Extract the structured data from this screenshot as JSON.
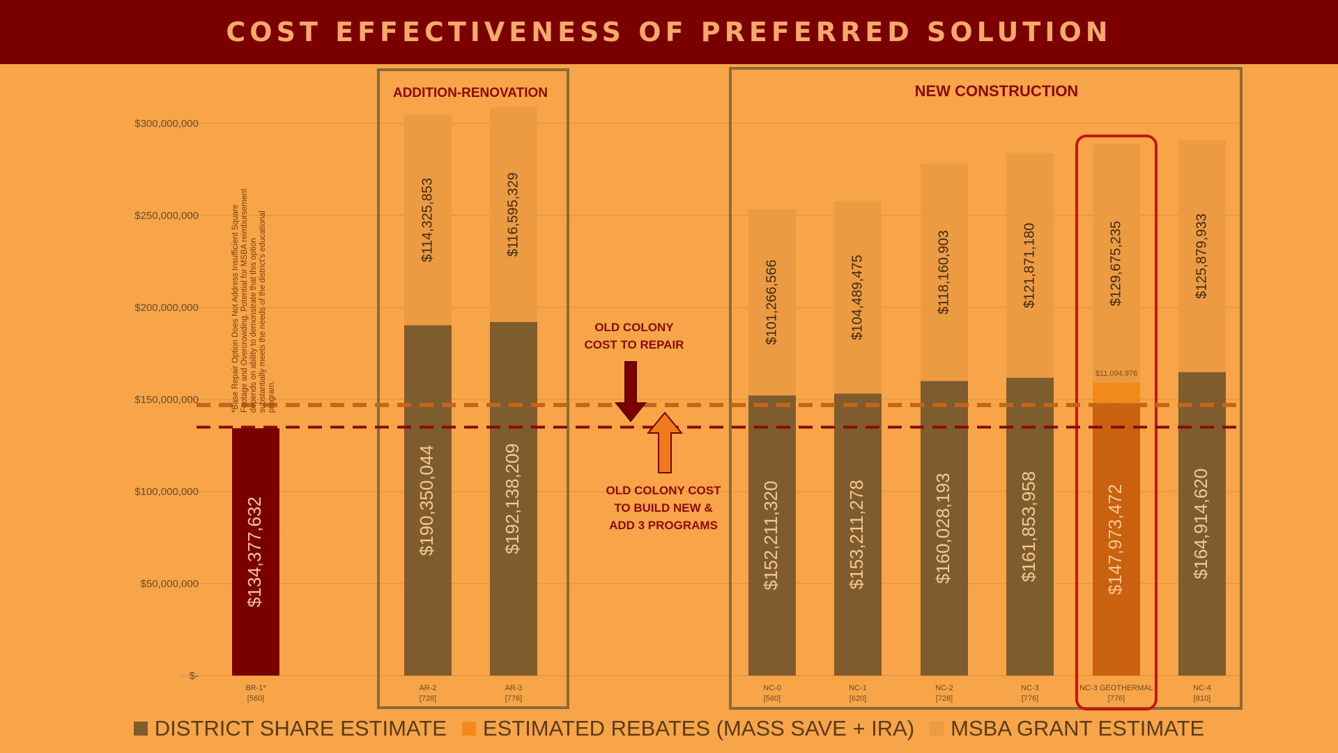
{
  "header": {
    "title": "COST EFFECTIVENESS OF PREFERRED SOLUTION"
  },
  "colors": {
    "background": "#f7a548",
    "title_bar": "#7a0000",
    "district_share": "#7e5c2e",
    "district_share_br1": "#7a0000",
    "district_share_geothermal": "#c9610e",
    "rebates": "#f28a1a",
    "msba_grant": "#ec9b42",
    "repair_line": "#c2661a",
    "new_line": "#8a0a0a"
  },
  "groups": {
    "addition_renovation": "ADDITION-RENOVATION",
    "new_construction": "NEW CONSTRUCTION"
  },
  "annotations": {
    "br1_note": "*Base Repair Option Does Not Address Insufficient Square Footage and Overcrowding. Potential for MSBA reimbursement depends on ability to demonstrate that this option substantially meets the needs of the district's educational program.",
    "repair_label": [
      "OLD COLONY",
      "COST TO REPAIR"
    ],
    "new_label": [
      "OLD COLONY COST",
      "TO BUILD NEW &",
      "ADD 3 PROGRAMS"
    ]
  },
  "legend": [
    {
      "label": "DISTRICT SHARE ESTIMATE",
      "color": "#7e5c2e"
    },
    {
      "label": "ESTIMATED REBATES (MASS SAVE + IRA)",
      "color": "#f28a1a"
    },
    {
      "label": "MSBA GRANT ESTIMATE",
      "color": "#ec9b42"
    }
  ],
  "chart_data": {
    "type": "bar",
    "stacked": true,
    "title": "COST EFFECTIVENESS OF PREFERRED SOLUTION",
    "categories": [
      "BR-1*",
      "AR-2",
      "AR-3",
      "NC-0",
      "NC-1",
      "NC-2",
      "NC-3",
      "NC-3 GEOTHERMAL",
      "NC-4"
    ],
    "category_sublabels": [
      "[560]",
      "[728]",
      "[776]",
      "[560]",
      "[620]",
      "[728]",
      "[776]",
      "[776]",
      "[810]"
    ],
    "series": [
      {
        "name": "DISTRICT SHARE ESTIMATE",
        "values": [
          134377632,
          190350044,
          192138209,
          152211320,
          153211278,
          160028193,
          161853958,
          147973472,
          164914620
        ],
        "labels": [
          "$134,377,632",
          "$190,350,044",
          "$192,138,209",
          "$152,211,320",
          "$153,211,278",
          "$160,028,193",
          "$161,853,958",
          "$147,973,472",
          "$164,914,620"
        ]
      },
      {
        "name": "ESTIMATED REBATES (MASS SAVE + IRA)",
        "values": [
          0,
          0,
          0,
          0,
          0,
          0,
          0,
          11094976,
          0
        ],
        "labels": [
          "",
          "",
          "",
          "",
          "",
          "",
          "",
          "$11,094,976",
          ""
        ]
      },
      {
        "name": "MSBA GRANT ESTIMATE",
        "values": [
          0,
          114325853,
          116595329,
          101266566,
          104489475,
          118160903,
          121871180,
          129675235,
          125879933
        ],
        "labels": [
          "",
          "$114,325,853",
          "$116,595,329",
          "$101,266,566",
          "$104,489,475",
          "$118,160,903",
          "$121,871,180",
          "$129,675,235",
          "$125,879,933"
        ]
      }
    ],
    "ylim": [
      0,
      300000000
    ],
    "yticks": [
      0,
      50000000,
      100000000,
      150000000,
      200000000,
      250000000,
      300000000
    ],
    "ytick_labels": [
      "$-",
      "$50,000,000",
      "$100,000,000",
      "$150,000,000",
      "$200,000,000",
      "$250,000,000",
      "$300,000,000"
    ],
    "reference_lines": [
      {
        "label": "OLD COLONY COST TO REPAIR",
        "value": 147000000
      },
      {
        "label": "OLD COLONY COST TO BUILD NEW & ADD 3 PROGRAMS",
        "value": 135000000
      }
    ],
    "highlighted_category": "NC-3 GEOTHERMAL",
    "grid": true,
    "legend_position": "bottom"
  }
}
